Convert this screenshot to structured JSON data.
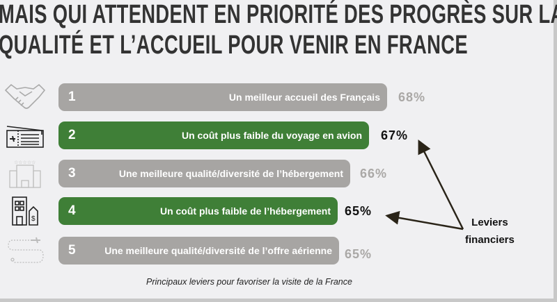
{
  "title": {
    "line1": "MAIS QUI ATTENDENT EN PRIORITÉ DES PROGRÈS SUR LA",
    "line2": "QUALITÉ ET L’ACCUEIL POUR VENIR EN FRANCE"
  },
  "items": [
    {
      "rank": "1",
      "label": "Un meilleur accueil des Français",
      "percent": "68%",
      "value": 68,
      "highlight": false,
      "icon": "handshake-icon"
    },
    {
      "rank": "2",
      "label": "Un coût plus faible du voyage en avion",
      "percent": "67%",
      "value": 67,
      "highlight": true,
      "icon": "plane-ticket-icon"
    },
    {
      "rank": "3",
      "label": "Une meilleure qualité/diversité de l’hébergement",
      "percent": "66%",
      "value": 66,
      "highlight": false,
      "icon": "hotel-icon"
    },
    {
      "rank": "4",
      "label": "Un coût plus faible de l’hébergement",
      "percent": "65%",
      "value": 65,
      "highlight": true,
      "icon": "building-price-tag-icon"
    },
    {
      "rank": "5",
      "label": "Une meilleure qualité/diversité de l’offre aérienne",
      "percent": "65%",
      "value": 65,
      "highlight": false,
      "icon": "flight-route-icon"
    }
  ],
  "annotation": {
    "line1": "Leviers",
    "line2": "financiers"
  },
  "caption": "Principaux leviers pour favoriser la visite de la France",
  "colors": {
    "gray": "#a7a5a3",
    "green": "#3f7f37",
    "background": "#f0f0f2"
  }
}
